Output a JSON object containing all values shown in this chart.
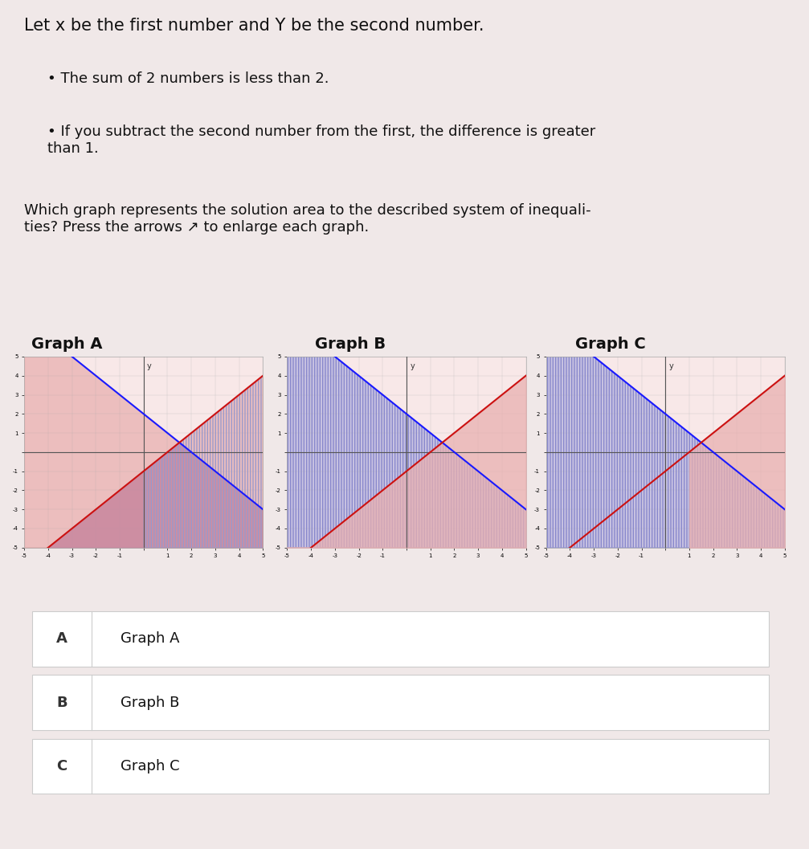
{
  "background_color": "#f0e8e8",
  "title_text": "Let x be the first number and Y be the second number.",
  "bullet1": "The sum of 2 numbers is less than 2.",
  "bullet2": "If you subtract the second number from the first, the difference is greater\nthan 1.",
  "question": "Which graph represents the solution area to the described system of inequali-\nties? Press the arrows ↗ to enlarge each graph.",
  "graph_labels": [
    "Graph A",
    "Graph B",
    "Graph C"
  ],
  "choices": [
    [
      "A",
      "Graph A"
    ],
    [
      "B",
      "Graph B"
    ],
    [
      "C",
      "Graph C"
    ]
  ],
  "xlim": [
    -5,
    5
  ],
  "ylim": [
    -5,
    5
  ],
  "line1_color": "#1a1aff",
  "line2_color": "#cc1111",
  "graph_bg": "#f8e8e8",
  "axis_color": "#555555",
  "choice_bg": "#ffffff",
  "choice_border": "#cccccc",
  "font_size_title": 15,
  "font_size_labels": 13,
  "font_size_choices": 13
}
